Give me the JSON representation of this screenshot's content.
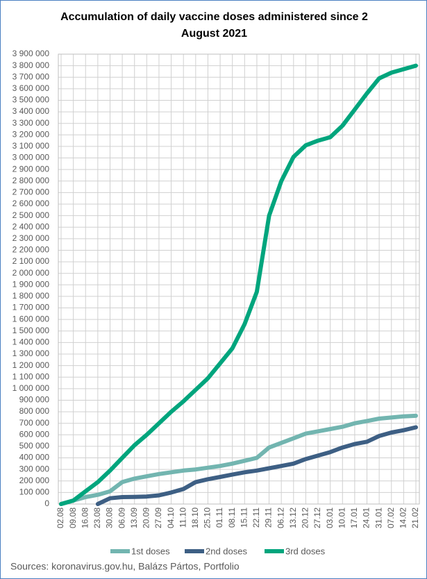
{
  "chart_data": {
    "type": "line",
    "title": "Accumulation of daily vaccine doses administered since 2 August 2021",
    "source": "Sources: koronavirus.gov.hu, Balázs Pártos, Portfolio",
    "categories": [
      "02.08",
      "09.08",
      "16.08",
      "23.08",
      "30.08",
      "06.09",
      "13.09",
      "20.09",
      "27.09",
      "04.10",
      "11.10",
      "18.10",
      "25.10",
      "01.11",
      "08.11",
      "15.11",
      "22.11",
      "29.11",
      "06.12",
      "13.12",
      "20.12",
      "27.12",
      "03.01",
      "10.01",
      "17.01",
      "24.01",
      "31.01",
      "07.02",
      "14.02",
      "21.02"
    ],
    "series": [
      {
        "name": "1st doses",
        "color": "#72b5b0",
        "values": [
          0,
          30000,
          60000,
          80000,
          110000,
          190000,
          220000,
          240000,
          260000,
          275000,
          290000,
          300000,
          315000,
          330000,
          350000,
          375000,
          400000,
          490000,
          530000,
          570000,
          610000,
          630000,
          650000,
          670000,
          700000,
          720000,
          740000,
          750000,
          760000,
          765000
        ]
      },
      {
        "name": "2nd doses",
        "color": "#3d5f84",
        "values": [
          null,
          null,
          null,
          0,
          50000,
          60000,
          62000,
          65000,
          75000,
          100000,
          130000,
          190000,
          215000,
          235000,
          255000,
          275000,
          290000,
          310000,
          330000,
          350000,
          390000,
          420000,
          450000,
          490000,
          520000,
          540000,
          590000,
          620000,
          640000,
          665000
        ]
      },
      {
        "name": "3rd doses",
        "color": "#00a57d",
        "values": [
          0,
          30000,
          110000,
          190000,
          290000,
          400000,
          510000,
          600000,
          700000,
          800000,
          890000,
          990000,
          1090000,
          1220000,
          1350000,
          1560000,
          1840000,
          2500000,
          2800000,
          3010000,
          3110000,
          3150000,
          3180000,
          3280000,
          3420000,
          3560000,
          3690000,
          3740000,
          3770000,
          3800000
        ]
      }
    ],
    "ylim": [
      0,
      3900000
    ],
    "yticks": [
      0,
      {
        "value": 100000,
        "label": "100 000"
      },
      {
        "value": 200000,
        "label": "200 000"
      },
      {
        "value": 300000,
        "label": "300 000"
      },
      {
        "value": 400000,
        "label": "400 000"
      },
      {
        "value": 500000,
        "label": "500 000"
      },
      {
        "value": 600000,
        "label": "600 000"
      },
      {
        "value": 700000,
        "label": "700 000"
      },
      {
        "value": 800000,
        "label": "800 000"
      },
      {
        "value": 900000,
        "label": "900 000"
      },
      {
        "value": 1000000,
        "label": "1 000 000"
      },
      {
        "value": 1100000,
        "label": "1 100 000"
      },
      {
        "value": 1200000,
        "label": "1 200 000"
      },
      {
        "value": 1300000,
        "label": "1 300 000"
      },
      {
        "value": 1400000,
        "label": "1 400 000"
      },
      {
        "value": 1500000,
        "label": "1 500 000"
      },
      {
        "value": 1600000,
        "label": "1 600 000"
      },
      {
        "value": 1700000,
        "label": "1 700 000"
      },
      {
        "value": 1800000,
        "label": "1 800 000"
      },
      {
        "value": 1900000,
        "label": "1 900 000"
      },
      {
        "value": 2000000,
        "label": "2 000 000"
      },
      {
        "value": 2100000,
        "label": "2 100 000"
      },
      {
        "value": 2200000,
        "label": "2 200 000"
      },
      {
        "value": 2300000,
        "label": "2 300 000"
      },
      {
        "value": 2400000,
        "label": "2 400 000"
      },
      {
        "value": 2500000,
        "label": "2 500 000"
      },
      {
        "value": 2600000,
        "label": "2 600 000"
      },
      {
        "value": 2700000,
        "label": "2 700 000"
      },
      {
        "value": 2800000,
        "label": "2 800 000"
      },
      {
        "value": 2900000,
        "label": "2 900 000"
      },
      {
        "value": 3000000,
        "label": "3 000 000"
      },
      {
        "value": 3100000,
        "label": "3 100 000"
      },
      {
        "value": 3200000,
        "label": "3 200 000"
      },
      {
        "value": 3300000,
        "label": "3 300 000"
      },
      {
        "value": 3400000,
        "label": "3 400 000"
      },
      {
        "value": 3500000,
        "label": "3 500 000"
      },
      {
        "value": 3600000,
        "label": "3 600 000"
      },
      {
        "value": 3700000,
        "label": "3 700 000"
      },
      {
        "value": 3800000,
        "label": "3 800 000"
      },
      {
        "value": 3900000,
        "label": "3 900 000"
      }
    ],
    "grid": true,
    "legend": "bottom"
  }
}
